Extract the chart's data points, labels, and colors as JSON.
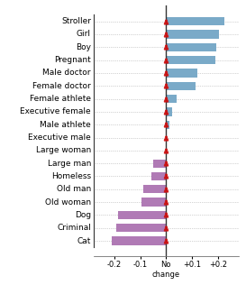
{
  "categories": [
    "Stroller",
    "Girl",
    "Boy",
    "Pregnant",
    "Male doctor",
    "Female doctor",
    "Female athlete",
    "Executive female",
    "Male athlete",
    "Executive male",
    "Large woman",
    "Large man",
    "Homeless",
    "Old man",
    "Old woman",
    "Dog",
    "Criminal",
    "Cat"
  ],
  "values": [
    0.225,
    0.205,
    0.195,
    0.19,
    0.122,
    0.115,
    0.04,
    0.022,
    0.012,
    0.004,
    0.0,
    -0.048,
    -0.055,
    -0.088,
    -0.095,
    -0.185,
    -0.192,
    -0.208
  ],
  "bar_color_pos": "#7aaac8",
  "bar_color_neg": "#b07ab5",
  "background_color": "#ffffff",
  "dotted_line_color": "#aaaaaa",
  "zero_line_color": "#333333",
  "label_fontsize": 6.5,
  "tick_fontsize": 6.0,
  "xlim": [
    -0.28,
    0.28
  ],
  "xticks": [
    -0.2,
    -0.1,
    0.0,
    0.1,
    0.2
  ],
  "xticklabels": [
    "-0.2",
    "-0.1",
    "No\nchange",
    "+0.1",
    "+0.2"
  ],
  "bar_height": 0.65
}
